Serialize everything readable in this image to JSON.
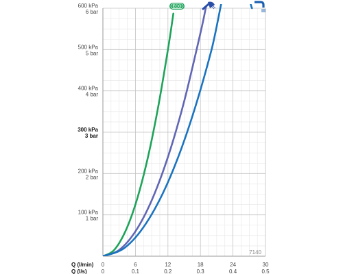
{
  "chart_data": {
    "type": "line",
    "x_primary": {
      "label": "Q (l/min)",
      "ticks": [
        "0",
        "6",
        "12",
        "18",
        "24",
        "30"
      ],
      "range": [
        0,
        30
      ]
    },
    "x_secondary": {
      "label": "Q (l/s)",
      "ticks": [
        "0",
        "0.1",
        "0.2",
        "0.3",
        "0.4",
        "0.5"
      ]
    },
    "y": {
      "range": [
        0,
        600
      ],
      "ticks": [
        {
          "value": 100,
          "kpa": "100 kPa",
          "bar": "1 bar",
          "bold": false
        },
        {
          "value": 200,
          "kpa": "200 kPa",
          "bar": "2 bar",
          "bold": false
        },
        {
          "value": 300,
          "kpa": "300 kPa",
          "bar": "3 bar",
          "bold": true
        },
        {
          "value": 400,
          "kpa": "400 kPa",
          "bar": "4 bar",
          "bold": false
        },
        {
          "value": 500,
          "kpa": "500 kPa",
          "bar": "5 bar",
          "bold": false
        },
        {
          "value": 600,
          "kpa": "600 kPa",
          "bar": "6 bar",
          "bold": false
        }
      ]
    },
    "series": [
      {
        "icon": "eco-badge-icon",
        "label": "ECO",
        "color": "#1ea35a",
        "points": [
          [
            0,
            0
          ],
          [
            2,
            14
          ],
          [
            4,
            56
          ],
          [
            6,
            125
          ],
          [
            8,
            222
          ],
          [
            10,
            347
          ],
          [
            12,
            500
          ],
          [
            13,
            587
          ]
        ]
      },
      {
        "icon": "hand-shower-icon",
        "color": "#6066b4",
        "points": [
          [
            0,
            0
          ],
          [
            3,
            15
          ],
          [
            6,
            60
          ],
          [
            9,
            135
          ],
          [
            12,
            240
          ],
          [
            15,
            375
          ],
          [
            18,
            540
          ],
          [
            19,
            602
          ]
        ]
      },
      {
        "icon": "bath-spout-icon",
        "color": "#1a73c0",
        "points": [
          [
            0,
            0
          ],
          [
            4,
            20
          ],
          [
            8,
            80
          ],
          [
            12,
            179
          ],
          [
            16,
            318
          ],
          [
            20,
            497
          ],
          [
            24,
            715
          ],
          [
            27.5,
            600
          ]
        ]
      }
    ],
    "grid": true,
    "code": "7140"
  }
}
